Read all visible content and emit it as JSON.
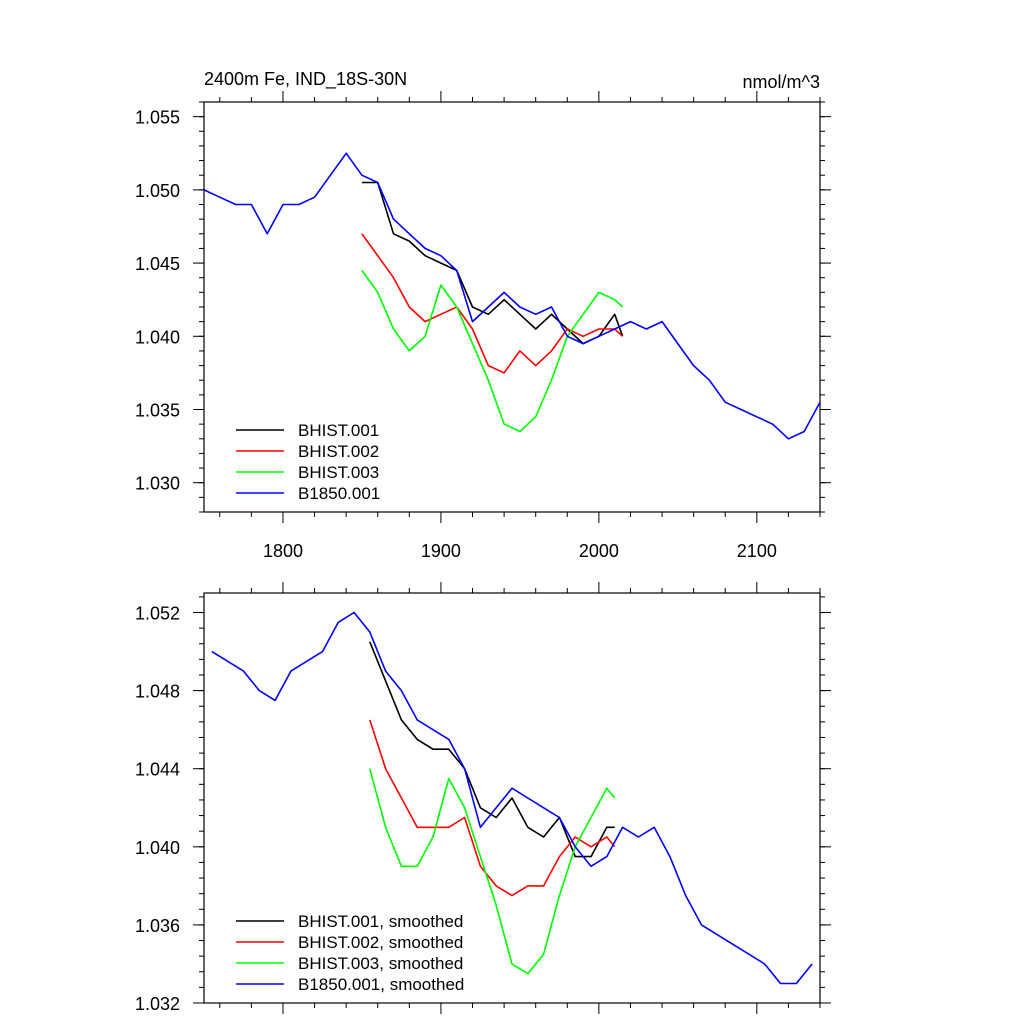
{
  "colors": {
    "BHIST.001": "#000000",
    "BHIST.002": "#ff0000",
    "BHIST.003": "#00ff00",
    "B1850.001": "#0000ff"
  },
  "chart_data": [
    {
      "id": "top",
      "type": "line",
      "title": "2400m Fe, IND_18S-30N",
      "units_label": "nmol/m^3",
      "xlim": [
        1750,
        2140
      ],
      "ylim": [
        1.028,
        1.056
      ],
      "xticks": [
        1800,
        1900,
        2000,
        2100
      ],
      "xtick_labels": [
        "1800",
        "1900",
        "2000",
        "2100"
      ],
      "yticks": [
        1.03,
        1.035,
        1.04,
        1.045,
        1.05,
        1.055
      ],
      "ytick_labels": [
        "1.030",
        "1.035",
        "1.040",
        "1.045",
        "1.050",
        "1.055"
      ],
      "legend": {
        "placement": "bottom-left"
      },
      "series": [
        {
          "name": "BHIST.001",
          "color": "#000000",
          "x": [
            1850,
            1860,
            1870,
            1880,
            1890,
            1900,
            1910,
            1920,
            1930,
            1940,
            1950,
            1960,
            1970,
            1980,
            1990,
            2000,
            2010,
            2015
          ],
          "y": [
            1.0505,
            1.0505,
            1.047,
            1.0465,
            1.0455,
            1.045,
            1.0445,
            1.042,
            1.0415,
            1.0425,
            1.0415,
            1.0405,
            1.0415,
            1.0405,
            1.0395,
            1.04,
            1.0415,
            1.04
          ]
        },
        {
          "name": "BHIST.002",
          "color": "#ff0000",
          "x": [
            1850,
            1860,
            1870,
            1880,
            1890,
            1900,
            1910,
            1920,
            1930,
            1940,
            1950,
            1960,
            1970,
            1980,
            1990,
            2000,
            2010,
            2015
          ],
          "y": [
            1.047,
            1.0455,
            1.044,
            1.042,
            1.041,
            1.0415,
            1.042,
            1.0405,
            1.038,
            1.0375,
            1.039,
            1.038,
            1.039,
            1.0405,
            1.04,
            1.0405,
            1.0405,
            1.04
          ]
        },
        {
          "name": "BHIST.003",
          "color": "#00ff00",
          "x": [
            1850,
            1860,
            1870,
            1880,
            1890,
            1900,
            1910,
            1920,
            1930,
            1940,
            1950,
            1960,
            1970,
            1980,
            1990,
            2000,
            2010,
            2015
          ],
          "y": [
            1.0445,
            1.043,
            1.0405,
            1.039,
            1.04,
            1.0435,
            1.042,
            1.0395,
            1.037,
            1.034,
            1.0335,
            1.0345,
            1.037,
            1.04,
            1.0415,
            1.043,
            1.0425,
            1.042
          ]
        },
        {
          "name": "B1850.001",
          "color": "#0000ff",
          "x": [
            1750,
            1760,
            1770,
            1780,
            1790,
            1800,
            1810,
            1820,
            1830,
            1840,
            1850,
            1860,
            1870,
            1880,
            1890,
            1900,
            1910,
            1920,
            1930,
            1940,
            1950,
            1960,
            1970,
            1980,
            1990,
            2000,
            2010,
            2020,
            2030,
            2040,
            2050,
            2060,
            2070,
            2080,
            2090,
            2100,
            2110,
            2120,
            2130,
            2140
          ],
          "y": [
            1.05,
            1.0495,
            1.049,
            1.049,
            1.047,
            1.049,
            1.049,
            1.0495,
            1.051,
            1.0525,
            1.051,
            1.0505,
            1.048,
            1.047,
            1.046,
            1.0455,
            1.0445,
            1.041,
            1.042,
            1.043,
            1.042,
            1.0415,
            1.042,
            1.04,
            1.0395,
            1.04,
            1.0405,
            1.041,
            1.0405,
            1.041,
            1.0395,
            1.038,
            1.037,
            1.0355,
            1.035,
            1.0345,
            1.034,
            1.033,
            1.0335,
            1.0355
          ]
        }
      ]
    },
    {
      "id": "bottom",
      "type": "line",
      "xlim": [
        1750,
        2140
      ],
      "ylim": [
        1.032,
        1.053
      ],
      "xticks": [
        1800,
        1900,
        2000,
        2100
      ],
      "yticks": [
        1.032,
        1.036,
        1.04,
        1.044,
        1.048,
        1.052
      ],
      "ytick_labels": [
        "1.032",
        "1.036",
        "1.040",
        "1.044",
        "1.048",
        "1.052"
      ],
      "legend": {
        "placement": "bottom-left"
      },
      "series": [
        {
          "name": "BHIST.001, smoothed",
          "color": "#000000",
          "x": [
            1855,
            1865,
            1875,
            1885,
            1895,
            1905,
            1915,
            1925,
            1935,
            1945,
            1955,
            1965,
            1975,
            1985,
            1995,
            2005,
            2010
          ],
          "y": [
            1.0505,
            1.0485,
            1.0465,
            1.0455,
            1.045,
            1.045,
            1.044,
            1.042,
            1.0415,
            1.0425,
            1.041,
            1.0405,
            1.0415,
            1.0395,
            1.0395,
            1.041,
            1.041
          ]
        },
        {
          "name": "BHIST.002, smoothed",
          "color": "#ff0000",
          "x": [
            1855,
            1865,
            1875,
            1885,
            1895,
            1905,
            1915,
            1925,
            1935,
            1945,
            1955,
            1965,
            1975,
            1985,
            1995,
            2005,
            2010
          ],
          "y": [
            1.0465,
            1.044,
            1.0425,
            1.041,
            1.041,
            1.041,
            1.0415,
            1.039,
            1.038,
            1.0375,
            1.038,
            1.038,
            1.0395,
            1.0405,
            1.04,
            1.0405,
            1.04
          ]
        },
        {
          "name": "BHIST.003, smoothed",
          "color": "#00ff00",
          "x": [
            1855,
            1865,
            1875,
            1885,
            1895,
            1905,
            1915,
            1925,
            1935,
            1945,
            1955,
            1965,
            1975,
            1985,
            1995,
            2005,
            2010
          ],
          "y": [
            1.044,
            1.041,
            1.039,
            1.039,
            1.0405,
            1.0435,
            1.042,
            1.0395,
            1.037,
            1.034,
            1.0335,
            1.0345,
            1.0375,
            1.04,
            1.0415,
            1.043,
            1.0425
          ]
        },
        {
          "name": "B1850.001, smoothed",
          "color": "#0000ff",
          "x": [
            1755,
            1765,
            1775,
            1785,
            1795,
            1805,
            1815,
            1825,
            1835,
            1845,
            1855,
            1865,
            1875,
            1885,
            1895,
            1905,
            1915,
            1925,
            1935,
            1945,
            1955,
            1965,
            1975,
            1985,
            1995,
            2005,
            2015,
            2025,
            2035,
            2045,
            2055,
            2065,
            2075,
            2085,
            2095,
            2105,
            2115,
            2125,
            2135
          ],
          "y": [
            1.05,
            1.0495,
            1.049,
            1.048,
            1.0475,
            1.049,
            1.0495,
            1.05,
            1.0515,
            1.052,
            1.051,
            1.049,
            1.048,
            1.0465,
            1.046,
            1.0455,
            1.044,
            1.041,
            1.042,
            1.043,
            1.0425,
            1.042,
            1.0415,
            1.04,
            1.039,
            1.0395,
            1.041,
            1.0405,
            1.041,
            1.0395,
            1.0375,
            1.036,
            1.0355,
            1.035,
            1.0345,
            1.034,
            1.033,
            1.033,
            1.034
          ]
        }
      ]
    }
  ]
}
